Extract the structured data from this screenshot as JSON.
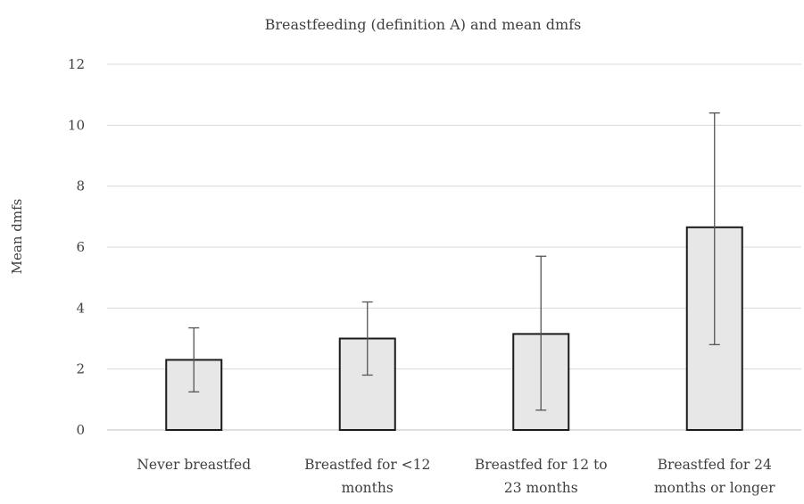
{
  "chart_data": {
    "type": "bar",
    "title": "Breastfeeding (definition A) and mean dmfs",
    "xlabel": "",
    "ylabel": "Mean dmfs",
    "ylim": [
      0,
      12
    ],
    "yticks": [
      0,
      2,
      4,
      6,
      8,
      10,
      12
    ],
    "grid": true,
    "legend": "none",
    "categories": [
      [
        "Never breastfed"
      ],
      [
        "Breastfed for <12",
        "months"
      ],
      [
        "Breastfed for 12 to",
        "23 months"
      ],
      [
        "Breastfed for 24",
        "months or longer"
      ]
    ],
    "values": [
      2.3,
      3.0,
      3.15,
      6.65
    ],
    "error_low": [
      1.25,
      1.8,
      0.65,
      2.8
    ],
    "error_high": [
      3.35,
      4.2,
      5.7,
      10.4
    ],
    "colors": {
      "bar_fill": "#e7e7e7",
      "bar_stroke": "#1a1a1a",
      "grid": "#d9d9d9",
      "error_bar": "#555555",
      "text": "#404040"
    }
  }
}
